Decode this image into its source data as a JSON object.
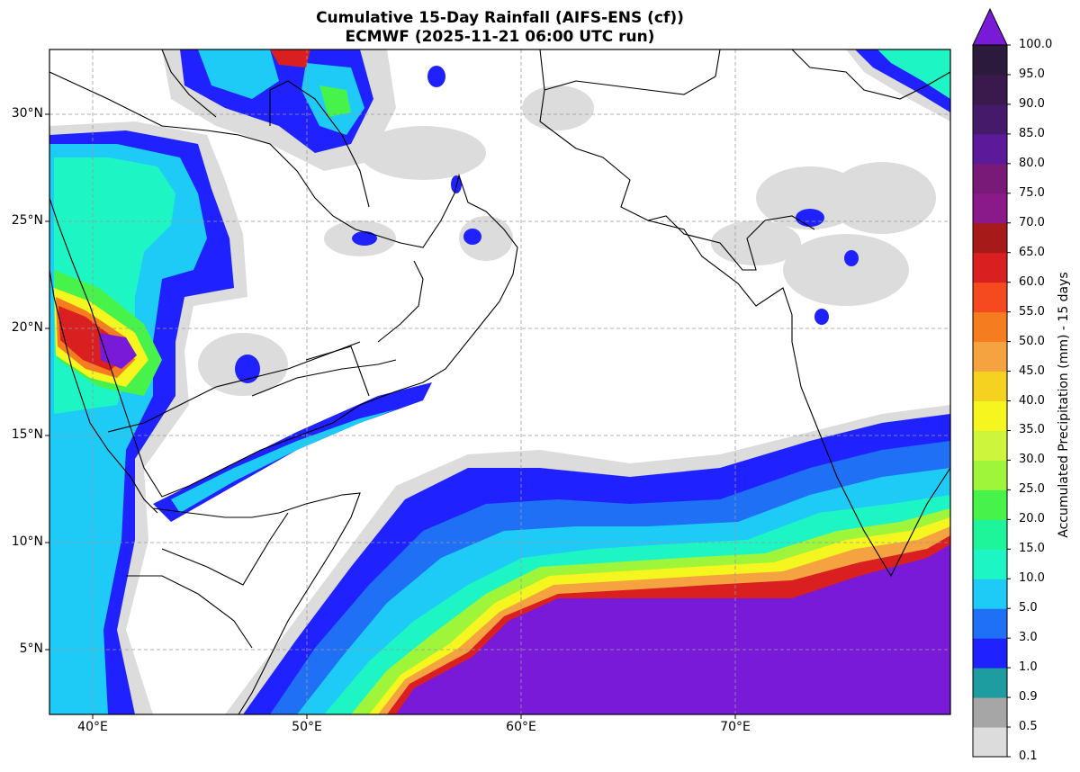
{
  "title": {
    "line1": "Cumulative 15-Day Rainfall (AIFS-ENS (cf))",
    "line2": "ECMWF (2025-11-21 06:00 UTC run)"
  },
  "map": {
    "lon_range": [
      38,
      81
    ],
    "lat_range": [
      2,
      33
    ],
    "lat_ticks": [
      "30°N",
      "25°N",
      "20°N",
      "15°N",
      "10°N",
      "5°N"
    ],
    "lon_ticks": [
      "40°E",
      "50°E",
      "60°E",
      "70°E"
    ],
    "gridlines": true
  },
  "colorbar": {
    "label": "Accumulated Precipitation (mm) - 15 days",
    "levels": [
      "0.1",
      "0.5",
      "0.9",
      "1.0",
      "3.0",
      "5.0",
      "10.0",
      "15.0",
      "20.0",
      "25.0",
      "30.0",
      "35.0",
      "40.0",
      "45.0",
      "50.0",
      "55.0",
      "60.0",
      "65.0",
      "70.0",
      "75.0",
      "80.0",
      "85.0",
      "90.0",
      "95.0",
      "100.0"
    ],
    "colors": [
      "#dcdcdc",
      "#a6a6a6",
      "#1d9d9f",
      "#1f22ff",
      "#1f70f5",
      "#1ecbf6",
      "#1ef5c5",
      "#1ef59a",
      "#47f24b",
      "#9ef53a",
      "#cdf53b",
      "#f5f51f",
      "#f5d21f",
      "#f5a340",
      "#f57c1f",
      "#f54a1f",
      "#d91f1f",
      "#a61a1a",
      "#8a1a8a",
      "#7a1a78",
      "#5c1a9a",
      "#451a6a",
      "#3a1a4c",
      "#2c1a3c"
    ],
    "extend_color": "#7a1ad9"
  }
}
